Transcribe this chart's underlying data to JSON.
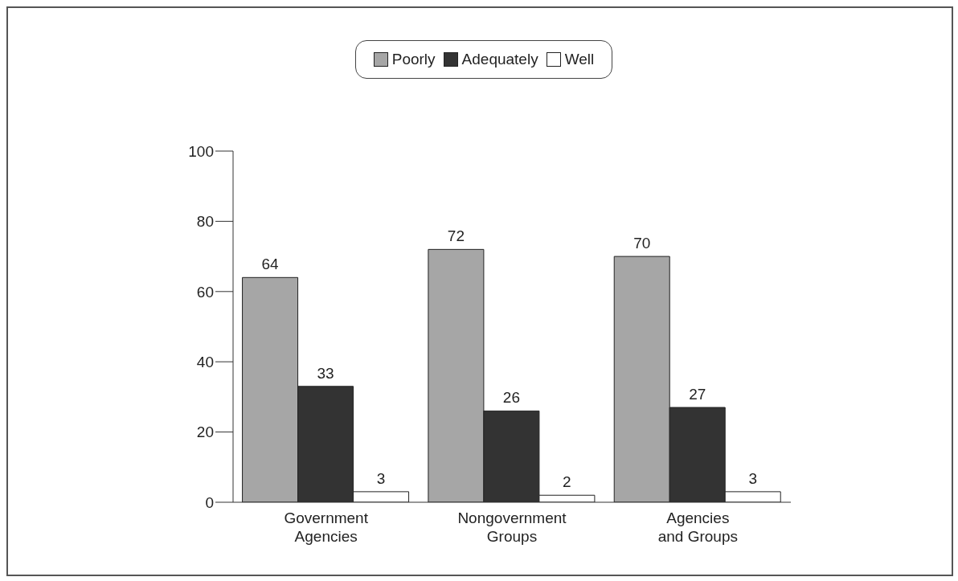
{
  "chart_data": {
    "type": "bar",
    "categories": [
      "Government Agencies",
      "Nongovernment Groups",
      "Agencies and Groups"
    ],
    "series": [
      {
        "name": "Poorly",
        "color": "#a6a6a6",
        "values": [
          64,
          72,
          70
        ]
      },
      {
        "name": "Adequately",
        "color": "#333333",
        "values": [
          33,
          26,
          27
        ]
      },
      {
        "name": "Well",
        "color": "#ffffff",
        "values": [
          3,
          2,
          3
        ]
      }
    ],
    "ylim": [
      0,
      100
    ],
    "yticks": [
      0,
      20,
      40,
      60,
      80,
      100
    ],
    "data_labels": true,
    "legend": "top",
    "grid": false
  }
}
